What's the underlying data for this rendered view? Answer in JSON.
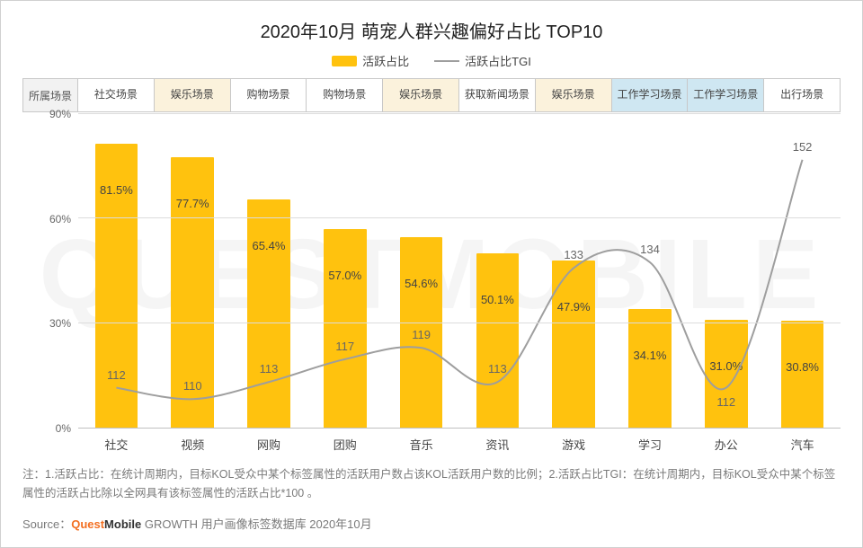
{
  "title": "2020年10月 萌宠人群兴趣偏好占比 TOP10",
  "legend": {
    "bar_label": "活跃占比",
    "line_label": "活跃占比TGI"
  },
  "scene_header": "所属场景",
  "scene_cells": [
    {
      "label": "社交场景",
      "bg": "#ffffff"
    },
    {
      "label": "娱乐场景",
      "bg": "#fbf2dc"
    },
    {
      "label": "购物场景",
      "bg": "#ffffff"
    },
    {
      "label": "购物场景",
      "bg": "#ffffff"
    },
    {
      "label": "娱乐场景",
      "bg": "#fbf2dc"
    },
    {
      "label": "获取新闻场景",
      "bg": "#ffffff"
    },
    {
      "label": "娱乐场景",
      "bg": "#fbf2dc"
    },
    {
      "label": "工作学习场景",
      "bg": "#cfe7f2"
    },
    {
      "label": "工作学习场景",
      "bg": "#cfe7f2"
    },
    {
      "label": "出行场景",
      "bg": "#ffffff"
    }
  ],
  "chart": {
    "type": "bar+line",
    "categories": [
      "社交",
      "视频",
      "网购",
      "团购",
      "音乐",
      "资讯",
      "游戏",
      "学习",
      "办公",
      "汽车"
    ],
    "bar_values": [
      81.5,
      77.7,
      65.4,
      57.0,
      54.6,
      50.1,
      47.9,
      34.1,
      31.0,
      30.8
    ],
    "bar_labels": [
      "81.5%",
      "77.7%",
      "65.4%",
      "57.0%",
      "54.6%",
      "50.1%",
      "47.9%",
      "34.1%",
      "31.0%",
      "30.8%"
    ],
    "tgi_values": [
      112,
      110,
      113,
      117,
      119,
      113,
      133,
      134,
      112,
      152
    ],
    "tgi_labels": [
      "112",
      "110",
      "113",
      "117",
      "119",
      "113",
      "133",
      "134",
      "112",
      "152"
    ],
    "tgi_offsets": [
      "above",
      "above",
      "above",
      "above",
      "above",
      "above",
      "above",
      "above",
      "below",
      "above"
    ],
    "bar_color": "#ffc20e",
    "line_color": "#9e9e9e",
    "background_color": "#ffffff",
    "grid_color": "#dcdcdc",
    "ylim": [
      0,
      90
    ],
    "ytick_step": 30,
    "yticks": [
      "0%",
      "30%",
      "60%",
      "90%"
    ],
    "tgi_range": [
      105,
      160
    ],
    "bar_width_pct": 56
  },
  "notes": "注：1.活跃占比：在统计周期内，目标KOL受众中某个标签属性的活跃用户数占该KOL活跃用户数的比例；2.活跃占比TGI：在统计周期内，目标KOL受众中某个标签属性的活跃占比除以全网具有该标签属性的活跃占比*100 。",
  "source": {
    "prefix": "Source：",
    "brand_q": "Quest",
    "brand_q_color": "#f36f21",
    "brand_m": "Mobile",
    "brand_m_color": "#333333",
    "rest": " GROWTH 用户画像标签数据库 2020年10月"
  },
  "watermark": "QUESTMOBILE"
}
